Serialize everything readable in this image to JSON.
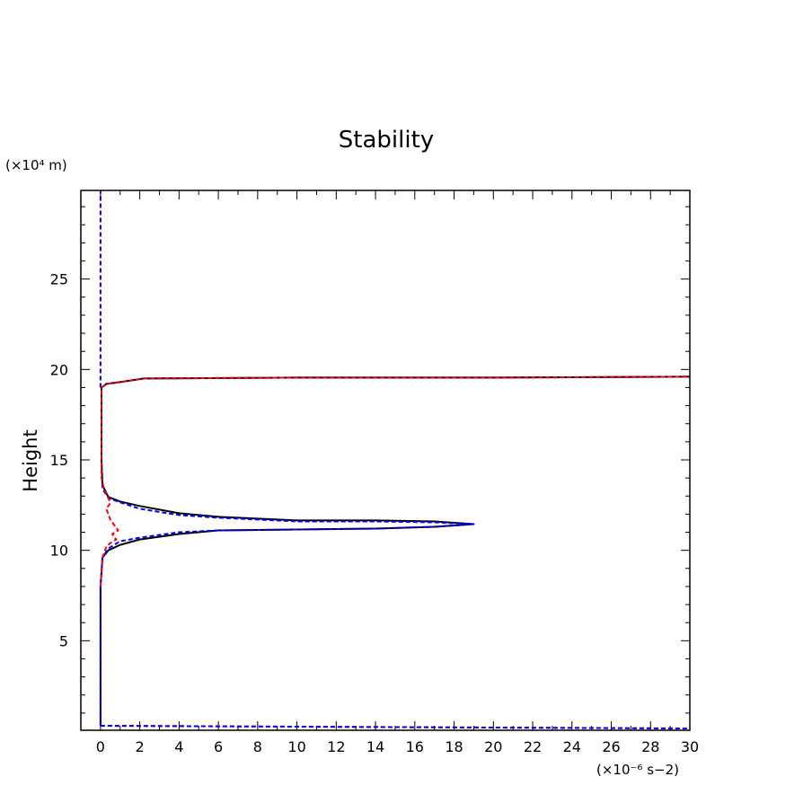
{
  "chart_data": {
    "type": "line",
    "title": "Stability",
    "xlabel": "",
    "ylabel": "Height",
    "x_units": "(×10⁻⁶ s−2)",
    "y_units": "(×10⁴ m)",
    "xlim": [
      -1,
      30
    ],
    "ylim": [
      0.05,
      29.9
    ],
    "grid": false,
    "x_ticks": [
      0,
      2,
      4,
      6,
      8,
      10,
      12,
      14,
      16,
      18,
      20,
      22,
      24,
      26,
      28,
      30
    ],
    "x_tick_labels": [
      "0",
      "2",
      "4",
      "6",
      "8",
      "10",
      "12",
      "14",
      "16",
      "18",
      "20",
      "22",
      "24",
      "26",
      "28",
      "30"
    ],
    "y_ticks": [
      5,
      10,
      15,
      20,
      25
    ],
    "y_tick_labels": [
      "5",
      "10",
      "15",
      "20",
      "25"
    ],
    "series": [
      {
        "color": "#000000",
        "style": "solid",
        "points": [
          [
            0,
            0.3
          ],
          [
            0,
            8.0
          ],
          [
            0.1,
            9.6
          ],
          [
            0.4,
            10.0
          ],
          [
            1,
            10.3
          ],
          [
            2,
            10.6
          ],
          [
            4,
            10.9
          ],
          [
            6,
            11.1
          ],
          [
            10,
            11.15
          ],
          [
            14,
            11.2
          ],
          [
            17,
            11.3
          ],
          [
            19,
            11.45
          ],
          [
            17,
            11.6
          ],
          [
            14,
            11.65
          ],
          [
            10,
            11.65
          ],
          [
            8,
            11.75
          ],
          [
            6,
            11.85
          ],
          [
            4,
            12.05
          ],
          [
            2,
            12.45
          ],
          [
            1,
            12.7
          ],
          [
            0.4,
            12.95
          ],
          [
            0.1,
            13.6
          ],
          [
            0.05,
            15.0
          ],
          [
            0.05,
            19.0
          ],
          [
            0.3,
            19.2
          ],
          [
            1,
            19.3
          ],
          [
            2.2,
            19.5
          ],
          [
            10,
            19.55
          ],
          [
            20,
            19.55
          ],
          [
            30,
            19.6
          ]
        ]
      },
      {
        "color": "#0000ff",
        "style": "dashed",
        "points": [
          [
            0,
            0.3
          ],
          [
            0,
            8.0
          ],
          [
            0.1,
            9.6
          ],
          [
            0.4,
            10.1
          ],
          [
            1,
            10.5
          ],
          [
            2,
            10.7
          ],
          [
            4,
            11.0
          ],
          [
            6,
            11.1
          ],
          [
            10,
            11.15
          ],
          [
            14,
            11.2
          ],
          [
            17,
            11.3
          ],
          [
            19,
            11.45
          ],
          [
            17,
            11.55
          ],
          [
            14,
            11.6
          ],
          [
            10,
            11.6
          ],
          [
            8,
            11.7
          ],
          [
            6,
            11.8
          ],
          [
            4,
            11.95
          ],
          [
            2,
            12.3
          ],
          [
            1,
            12.65
          ],
          [
            0.4,
            12.9
          ],
          [
            0.1,
            13.4
          ],
          [
            0.05,
            15.0
          ],
          [
            0.05,
            19.0
          ],
          [
            0.3,
            19.2
          ],
          [
            1,
            19.3
          ],
          [
            2.2,
            19.5
          ],
          [
            10,
            19.55
          ],
          [
            20,
            19.55
          ],
          [
            30,
            19.6
          ]
        ]
      },
      {
        "color": "#ff0000",
        "style": "dashed",
        "points": [
          [
            0,
            8.0
          ],
          [
            0.1,
            9.6
          ],
          [
            0.3,
            10.2
          ],
          [
            0.5,
            10.4
          ],
          [
            0.8,
            10.6
          ],
          [
            0.6,
            10.9
          ],
          [
            0.9,
            11.1
          ],
          [
            0.7,
            11.4
          ],
          [
            0.5,
            11.7
          ],
          [
            0.4,
            12.0
          ],
          [
            0.3,
            12.3
          ],
          [
            0.5,
            12.6
          ],
          [
            0.4,
            12.9
          ],
          [
            0.2,
            13.3
          ],
          [
            0.05,
            14.0
          ],
          [
            0.05,
            15.0
          ],
          [
            0.05,
            19.0
          ],
          [
            0.3,
            19.2
          ],
          [
            1,
            19.3
          ],
          [
            2.2,
            19.5
          ],
          [
            10,
            19.55
          ],
          [
            20,
            19.55
          ],
          [
            30,
            19.6
          ]
        ]
      },
      {
        "color": "#ff0000",
        "style": "dashed",
        "points": [
          [
            0,
            0.3
          ],
          [
            10,
            0.25
          ],
          [
            20,
            0.2
          ],
          [
            30,
            0.15
          ]
        ]
      },
      {
        "color": "#0000ff",
        "style": "dashed",
        "points": [
          [
            0,
            19.0
          ],
          [
            0,
            29.9
          ]
        ]
      },
      {
        "color": "#0000ff",
        "style": "dashed",
        "points": [
          [
            0,
            0.3
          ],
          [
            10,
            0.25
          ],
          [
            20,
            0.2
          ],
          [
            30,
            0.15
          ]
        ]
      }
    ]
  }
}
